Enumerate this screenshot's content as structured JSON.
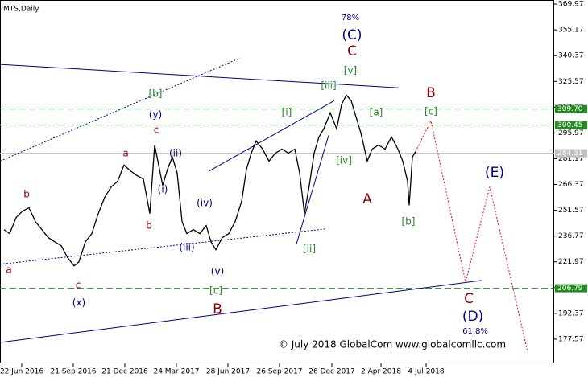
{
  "chart_data": {
    "type": "line",
    "title": "MTS,Daily",
    "color": "#000000",
    "x": [
      -22,
      -15,
      -7,
      1,
      9,
      17,
      25,
      33,
      41,
      49,
      57,
      65,
      71,
      79,
      87,
      95,
      103,
      111,
      119,
      127,
      135,
      143,
      151,
      159,
      165,
      169,
      175,
      181,
      187,
      193,
      199,
      205,
      213,
      221,
      229,
      235,
      241,
      249,
      257,
      265,
      273,
      279,
      285,
      291,
      299,
      307,
      315,
      323,
      331,
      339,
      345,
      351,
      357,
      363,
      369,
      375,
      383,
      391,
      397,
      403,
      409,
      415,
      421,
      429,
      435,
      443,
      451,
      459,
      467,
      473,
      479,
      481,
      485,
      489
    ],
    "values": [
      240.5,
      238.2,
      247.4,
      251.1,
      253.0,
      245.1,
      240.5,
      235.9,
      233.5,
      231.2,
      224.3,
      219.7,
      222.0,
      233.5,
      238.2,
      249.7,
      259.0,
      265.0,
      268.2,
      277.5,
      274.2,
      271.5,
      269.6,
      249.7,
      289.0,
      279.8,
      265.9,
      275.2,
      282.1,
      272.9,
      245.1,
      238.2,
      240.5,
      238.2,
      242.8,
      233.5,
      228.9,
      235.9,
      238.2,
      245.1,
      256.7,
      275.2,
      284.4,
      291.4,
      286.7,
      279.8,
      284.4,
      286.7,
      284.4,
      286.7,
      272.9,
      249.7,
      265.9,
      284.4,
      293.7,
      298.3,
      307.5,
      298.3,
      312.2,
      317.7,
      314.5,
      305.2,
      296.0,
      279.8,
      286.7,
      289.0,
      286.7,
      293.7,
      286.7,
      279.8,
      268.2,
      254.4,
      282.1,
      285.3
    ],
    "forecast": {
      "color": "#ff0000",
      "x": [
        489,
        508,
        551,
        581,
        628
      ],
      "values": [
        285.3,
        302.9,
        210.4,
        265.0,
        170.2
      ]
    },
    "trendlines": [
      {
        "color": "#00008b",
        "dash": false,
        "x": [
          -27,
          468
        ],
        "values": [
          335.3,
          321.9
        ]
      },
      {
        "color": "#00008b",
        "dash": true,
        "x": [
          -27,
          271
        ],
        "values": [
          279.8,
          339.0
        ]
      },
      {
        "color": "#00008b",
        "dash": true,
        "x": [
          -27,
          378
        ],
        "values": [
          220.6,
          240.9
        ]
      },
      {
        "color": "#00008b",
        "dash": false,
        "x": [
          -27,
          571
        ],
        "values": [
          175.7,
          211.3
        ]
      },
      {
        "color": "#00008b",
        "dash": false,
        "x": [
          233,
          388
        ],
        "values": [
          274.2,
          314.5
        ]
      },
      {
        "color": "#00008b",
        "dash": false,
        "x": [
          341,
          381
        ],
        "values": [
          232.2,
          294.6
        ]
      }
    ],
    "hlines": [
      {
        "value": 309.7,
        "label": "309.70",
        "color": "#228b22",
        "dash": true
      },
      {
        "value": 300.45,
        "label": "300.45",
        "color": "#228b22",
        "dash": true
      },
      {
        "value": 284.31,
        "label": "284.31",
        "color": "#c0c0c0",
        "dash": false
      },
      {
        "value": 206.79,
        "label": "206.79",
        "color": "#228b22",
        "dash": true
      }
    ],
    "xlim": [
      -27,
      661
    ],
    "ylim": [
      163.7,
      372.3
    ],
    "xticks": [
      {
        "value": 0,
        "label": "22 Jun 2016"
      },
      {
        "value": 64,
        "label": "21 Sep 2016"
      },
      {
        "value": 128,
        "label": "21 Dec 2016"
      },
      {
        "value": 192,
        "label": "24 Mar 2017"
      },
      {
        "value": 256,
        "label": "28 Jun 2017"
      },
      {
        "value": 320,
        "label": "26 Sep 2017"
      },
      {
        "value": 385,
        "label": "26 Dec 2017"
      },
      {
        "value": 446,
        "label": "2 Apr 2018"
      },
      {
        "value": 502,
        "label": "4 Jul 2018"
      }
    ],
    "yticks": [
      369.97,
      355.17,
      340.37,
      325.57,
      310.77,
      295.97,
      281.17,
      266.37,
      251.57,
      236.77,
      221.97,
      207.17,
      192.37,
      177.57
    ],
    "annotations": [
      {
        "text": "78%",
        "color": "#00008b"
      },
      {
        "text": "(C)",
        "color": "#00008b"
      },
      {
        "text": "C",
        "color": "#8b0000"
      },
      {
        "text": "[v]",
        "color": "#228b22"
      },
      {
        "text": "[iii]",
        "color": "#228b22"
      },
      {
        "text": "B",
        "color": "#8b0000"
      },
      {
        "text": "[c]",
        "color": "#228b22"
      },
      {
        "text": "[a]",
        "color": "#228b22"
      },
      {
        "text": "[i]",
        "color": "#228b22"
      },
      {
        "text": "[b]",
        "color": "#228b22"
      },
      {
        "text": "(y)",
        "color": "#00008b"
      },
      {
        "text": "c",
        "color": "#8b0000"
      },
      {
        "text": "a",
        "color": "#8b0000"
      },
      {
        "text": "(ii)",
        "color": "#00008b"
      },
      {
        "text": "[iv]",
        "color": "#228b22"
      },
      {
        "text": "(i)",
        "color": "#00008b"
      },
      {
        "text": "b",
        "color": "#8b0000"
      },
      {
        "text": "(iv)",
        "color": "#00008b"
      },
      {
        "text": "A",
        "color": "#8b0000"
      },
      {
        "text": "[b]",
        "color": "#228b22"
      },
      {
        "text": "b",
        "color": "#8b0000"
      },
      {
        "text": "(iii)",
        "color": "#00008b"
      },
      {
        "text": "[ii]",
        "color": "#228b22"
      },
      {
        "text": "(v)",
        "color": "#00008b"
      },
      {
        "text": "a",
        "color": "#8b0000"
      },
      {
        "text": "c",
        "color": "#8b0000"
      },
      {
        "text": "[c]",
        "color": "#228b22"
      },
      {
        "text": "(x)",
        "color": "#00008b"
      },
      {
        "text": "B",
        "color": "#8b0000"
      },
      {
        "text": "C",
        "color": "#8b0000"
      },
      {
        "text": "(D)",
        "color": "#00008b"
      },
      {
        "text": "(E)",
        "color": "#00008b"
      },
      {
        "text": "61.8%",
        "color": "#00008b"
      },
      {
        "text": "© July 2018 GlobalCom www.globalcomllc.com",
        "color": "#000000"
      }
    ]
  }
}
